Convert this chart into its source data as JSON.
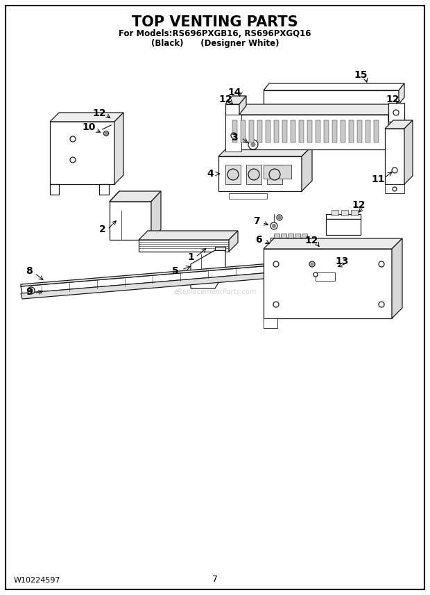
{
  "title": "TOP VENTING PARTS",
  "subtitle1": "For Models:RS696PXGB16, RS696PXGQ16",
  "subtitle2": "(Black)      (Designer White)",
  "footer_left": "W10224597",
  "footer_center": "7",
  "bg_color": "#ffffff",
  "lc": "#1a1a1a",
  "fc": "#f8f8f8",
  "title_fontsize": 15,
  "subtitle_fontsize": 8.5,
  "footer_fontsize": 8,
  "label_fontsize": 10
}
